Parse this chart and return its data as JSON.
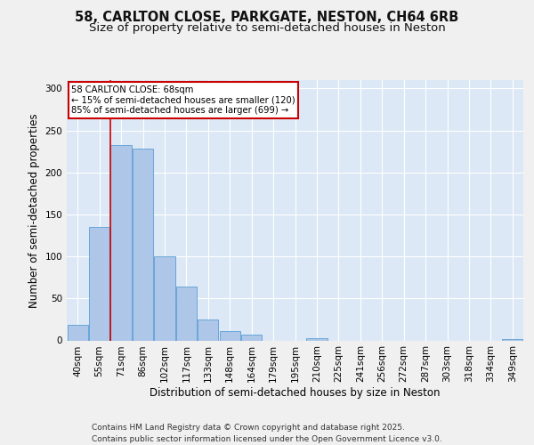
{
  "title1": "58, CARLTON CLOSE, PARKGATE, NESTON, CH64 6RB",
  "title2": "Size of property relative to semi-detached houses in Neston",
  "xlabel": "Distribution of semi-detached houses by size in Neston",
  "ylabel": "Number of semi-detached properties",
  "categories": [
    "40sqm",
    "55sqm",
    "71sqm",
    "86sqm",
    "102sqm",
    "117sqm",
    "133sqm",
    "148sqm",
    "164sqm",
    "179sqm",
    "195sqm",
    "210sqm",
    "225sqm",
    "241sqm",
    "256sqm",
    "272sqm",
    "287sqm",
    "303sqm",
    "318sqm",
    "334sqm",
    "349sqm"
  ],
  "values": [
    19,
    135,
    233,
    228,
    100,
    64,
    25,
    11,
    7,
    0,
    0,
    3,
    0,
    0,
    0,
    0,
    0,
    0,
    0,
    0,
    2
  ],
  "bar_color": "#aec6e8",
  "bar_edge_color": "#5a9fd4",
  "bg_color": "#dce8f5",
  "grid_color": "#ffffff",
  "annotation_box_text": "58 CARLTON CLOSE: 68sqm\n← 15% of semi-detached houses are smaller (120)\n85% of semi-detached houses are larger (699) →",
  "annotation_box_color": "#ffffff",
  "annotation_box_edge_color": "#cc0000",
  "vline_x_index": 1.5,
  "vline_color": "#cc0000",
  "ylim": [
    0,
    310
  ],
  "yticks": [
    0,
    50,
    100,
    150,
    200,
    250,
    300
  ],
  "footer": "Contains HM Land Registry data © Crown copyright and database right 2025.\nContains public sector information licensed under the Open Government Licence v3.0.",
  "title1_fontsize": 10.5,
  "title2_fontsize": 9.5,
  "axis_label_fontsize": 8.5,
  "tick_fontsize": 7.5,
  "footer_fontsize": 6.5,
  "fig_bg": "#f0f0f0"
}
